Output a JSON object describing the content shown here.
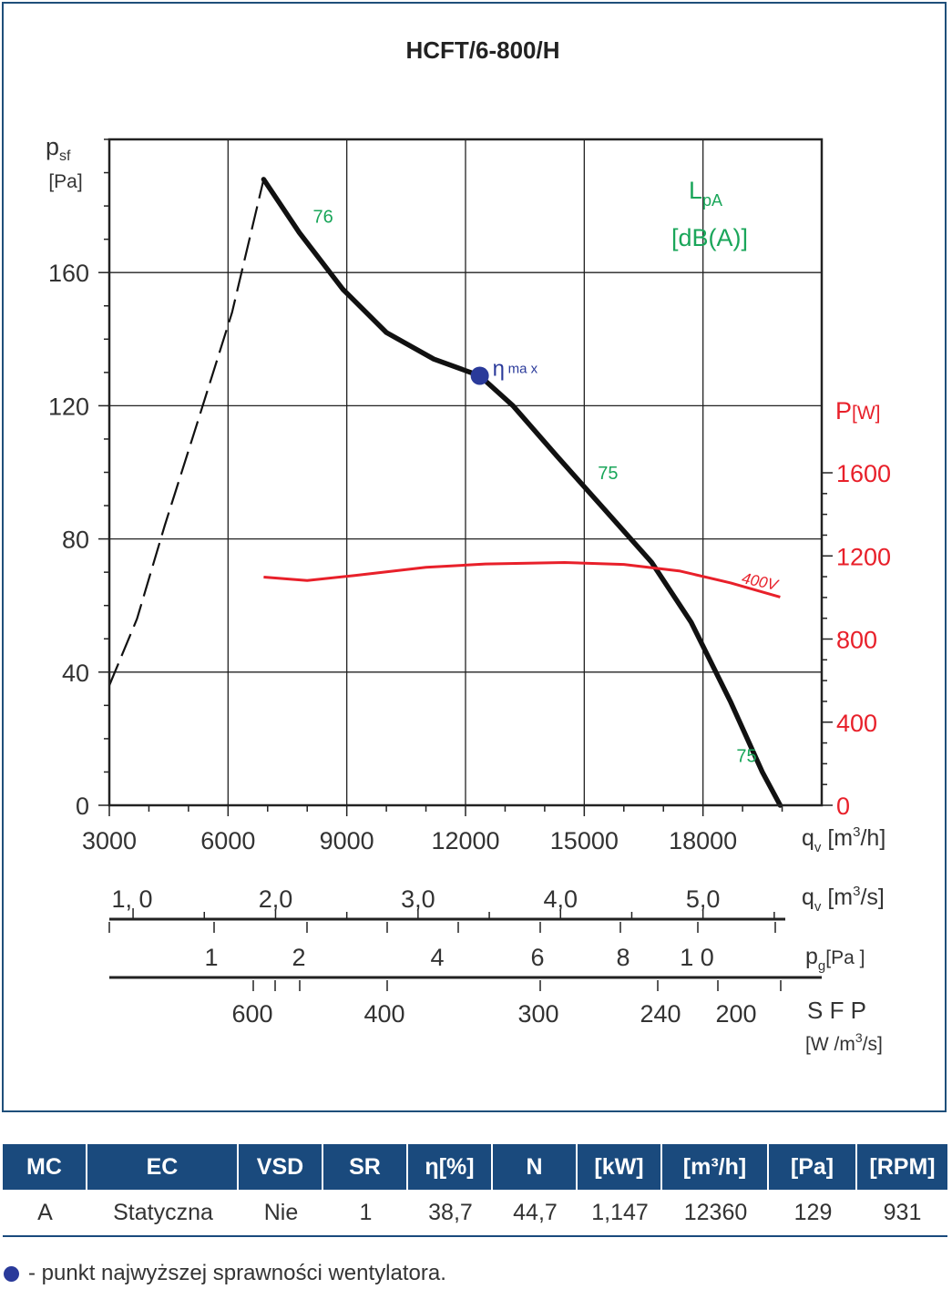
{
  "chart_data": {
    "type": "line",
    "title": "HCFT/6-800/H",
    "x_axis": {
      "unit_label": "q",
      "unit_sub": "v",
      "unit_text": "[m",
      "unit_sup": "3",
      "unit_end": "/h]",
      "min": 3000,
      "max": 21000,
      "ticks": [
        "3000",
        "6000",
        "9000",
        "12000",
        "15000",
        "18000"
      ],
      "tick_values": [
        3000,
        6000,
        9000,
        12000,
        15000,
        18000
      ]
    },
    "y_axis": {
      "label": "p",
      "label_sub": "sf",
      "unit": "[Pa]",
      "min": 0,
      "max": 200,
      "ticks": [
        "0",
        "40",
        "80",
        "120",
        "160"
      ],
      "tick_values": [
        0,
        40,
        80,
        120,
        160
      ]
    },
    "y2_axis": {
      "label": "P",
      "unit": "[W]",
      "min": 0,
      "max": 1600,
      "ticks": [
        "0",
        "400",
        "800",
        "1200",
        "1600"
      ],
      "tick_values": [
        0,
        400,
        800,
        1200,
        1600
      ],
      "color": "#e8202a"
    },
    "sound_label": {
      "main": "L",
      "sub": "pA",
      "unit": "[dB(A)]",
      "color": "#1aa65a"
    },
    "series": [
      {
        "name": "",
        "kind": "pressure-stall-dashed",
        "color": "#111111",
        "points": [
          [
            3000,
            36
          ],
          [
            3700,
            56
          ],
          [
            4400,
            84
          ],
          [
            5200,
            114
          ],
          [
            6100,
            148
          ],
          [
            6900,
            188
          ]
        ]
      },
      {
        "name": "",
        "kind": "pressure",
        "color": "#111111",
        "points": [
          [
            6900,
            188
          ],
          [
            7800,
            172
          ],
          [
            8900,
            155
          ],
          [
            10000,
            142
          ],
          [
            11200,
            134
          ],
          [
            12360,
            129
          ],
          [
            13200,
            120
          ],
          [
            14300,
            105
          ],
          [
            15500,
            89
          ],
          [
            16700,
            73
          ],
          [
            17700,
            55
          ],
          [
            18700,
            31
          ],
          [
            19500,
            10
          ],
          [
            19950,
            0
          ]
        ]
      },
      {
        "name": "400V",
        "kind": "power",
        "axis": "y2",
        "color": "#e8202a",
        "points": [
          [
            6900,
            1098
          ],
          [
            8000,
            1082
          ],
          [
            9200,
            1106
          ],
          [
            11000,
            1145
          ],
          [
            12500,
            1161
          ],
          [
            14500,
            1168
          ],
          [
            16000,
            1159
          ],
          [
            17400,
            1128
          ],
          [
            18700,
            1070
          ],
          [
            19950,
            1002
          ]
        ]
      }
    ],
    "sound_levels": [
      {
        "label": "76",
        "x": 8400,
        "y": 175
      },
      {
        "label": "75",
        "x": 15600,
        "y": 98
      },
      {
        "label": "75",
        "x": 19100,
        "y": 13
      }
    ],
    "eta_max": {
      "x": 12360,
      "y": 129,
      "symbol": "η",
      "label": "ma x",
      "color": "#2a3a9a"
    },
    "power_series_label": "400V",
    "secondary_scales": [
      {
        "name": "qv-m3s",
        "unit_label": "q",
        "unit_sub": "v",
        "unit_text": "[m",
        "unit_sup": "3",
        "unit_end": "/s]",
        "labels": [
          "1, 0",
          "2,0",
          "3,0",
          "4,0",
          "5,0"
        ],
        "values": [
          1.0,
          2.0,
          3.0,
          4.0,
          5.0
        ]
      },
      {
        "name": "pg-Pa",
        "unit_label": "p",
        "unit_sub": "g",
        "unit_end": "[Pa ]",
        "labels": [
          "1",
          "2",
          "4",
          "6",
          "8",
          "1 0"
        ],
        "values": [
          1,
          2,
          4,
          6,
          8,
          10
        ]
      },
      {
        "name": "sfp",
        "unit_label": "S F P",
        "unit_text": "[W /m",
        "unit_sup": "3",
        "unit_end": "/s]",
        "labels": [
          "600",
          "400",
          "300",
          "240",
          "200"
        ],
        "values": [
          600,
          400,
          300,
          240,
          200
        ]
      }
    ]
  },
  "table": {
    "headers": [
      "MC",
      "EC",
      "VSD",
      "SR",
      "η[%]",
      "N",
      "[kW]",
      "[m³/h]",
      "[Pa]",
      "[RPM]"
    ],
    "row": [
      "A",
      "Statyczna",
      "Nie",
      "1",
      "38,7",
      "44,7",
      "1,147",
      "12360",
      "129",
      "931"
    ]
  },
  "legend_note": "- punkt najwyższej sprawności wentylatora."
}
